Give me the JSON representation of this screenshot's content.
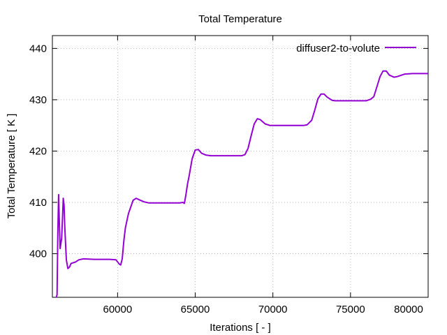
{
  "chart_data": {
    "type": "line",
    "title": "Total Temperature",
    "xlabel": "Iterations [ - ]",
    "ylabel": "Total Temperature [ K ]",
    "xlim": [
      55800,
      80000
    ],
    "ylim": [
      391.5,
      442.5
    ],
    "xticks": [
      60000,
      65000,
      70000,
      75000,
      80000
    ],
    "yticks": [
      400,
      410,
      420,
      430,
      440
    ],
    "grid": true,
    "legend_position": "top-right",
    "series": [
      {
        "name": "diffuser2-to-volute",
        "color": "#9400D3",
        "x": [
          55800,
          56000,
          56100,
          56150,
          56200,
          56250,
          56300,
          56400,
          56500,
          56550,
          56600,
          56700,
          56800,
          56900,
          57000,
          57300,
          57500,
          57800,
          58500,
          59500,
          59900,
          60100,
          60200,
          60300,
          60400,
          60500,
          60700,
          61000,
          61200,
          61400,
          61700,
          62000,
          63000,
          64000,
          64200,
          64300,
          64400,
          64500,
          64600,
          64800,
          65000,
          65200,
          65400,
          65700,
          66000,
          67000,
          68000,
          68200,
          68400,
          68600,
          68800,
          69000,
          69200,
          69500,
          69800,
          70000,
          71000,
          72000,
          72200,
          72500,
          72700,
          72900,
          73100,
          73300,
          73500,
          73800,
          74000,
          75000,
          76000,
          76300,
          76500,
          76700,
          76900,
          77100,
          77300,
          77500,
          77800,
          78000,
          78500,
          79000,
          80000
        ],
        "values": [
          390.5,
          391.0,
          392.0,
          404.0,
          411.5,
          406.0,
          401.0,
          403.0,
          410.8,
          409.5,
          405.0,
          398.8,
          397.1,
          397.4,
          398.1,
          398.4,
          398.8,
          399.0,
          398.9,
          398.9,
          398.8,
          398.0,
          397.8,
          399.0,
          402.5,
          405.0,
          407.8,
          410.4,
          410.8,
          410.5,
          410.1,
          409.9,
          409.9,
          409.9,
          410.0,
          409.8,
          411.5,
          413.5,
          415.0,
          418.5,
          420.2,
          420.3,
          419.6,
          419.2,
          419.1,
          419.1,
          419.1,
          419.3,
          420.5,
          423.0,
          425.3,
          426.3,
          426.1,
          425.3,
          425.0,
          425.0,
          425.0,
          425.0,
          425.1,
          426.0,
          428.0,
          430.2,
          431.1,
          431.1,
          430.5,
          429.9,
          429.8,
          429.8,
          429.8,
          430.1,
          430.6,
          432.5,
          434.5,
          435.6,
          435.6,
          434.8,
          434.4,
          434.5,
          435.0,
          435.1,
          435.1
        ]
      }
    ]
  }
}
